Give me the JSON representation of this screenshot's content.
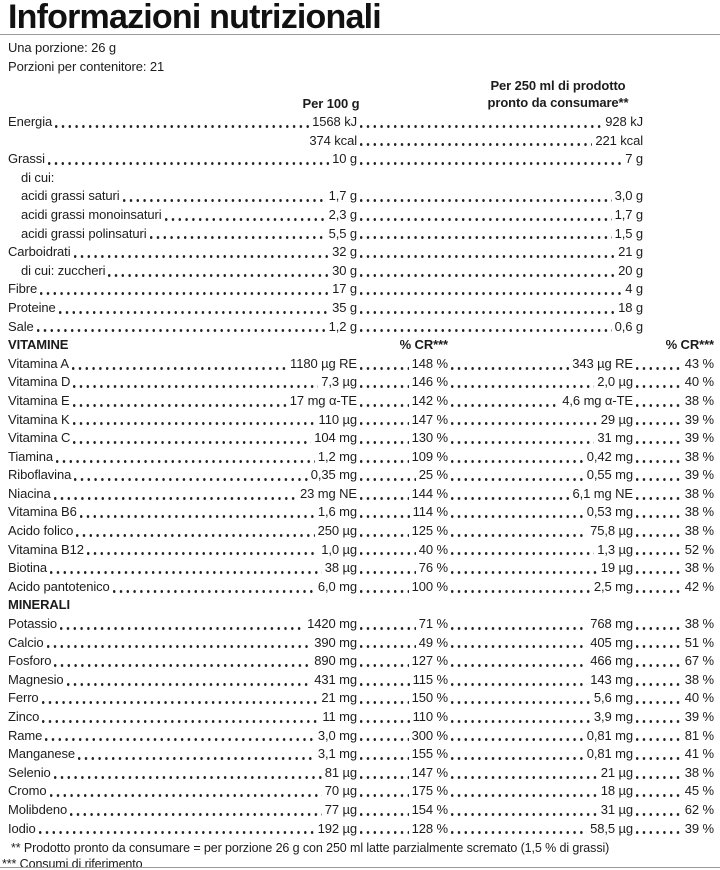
{
  "title": "Informazioni nutrizionali",
  "serving": {
    "per_serving": "Una porzione: 26 g",
    "servings_per_container": "Porzioni per contenitore: 21"
  },
  "column_headers": {
    "per_100g": "Per 100 g",
    "per_250ml_line1": "Per 250 ml di prodotto",
    "per_250ml_line2": "pronto da consumare**",
    "pct_cr": "% CR***"
  },
  "colors": {
    "text": "#1c1c1c",
    "rule": "#9a9a9a",
    "background": "#ffffff"
  },
  "table": {
    "rows": [
      {
        "type": "macro",
        "label": "Energia",
        "a1": "1568 kJ",
        "a2": "928 kJ"
      },
      {
        "type": "macro",
        "label": "",
        "a1": "374 kcal",
        "a2": "221 kcal",
        "leadDots": false
      },
      {
        "type": "macro",
        "label": "Grassi",
        "a1": "10 g",
        "a2": "7 g"
      },
      {
        "type": "label",
        "label": "di cui:",
        "indent": true
      },
      {
        "type": "macro",
        "label": "acidi grassi saturi",
        "a1": "1,7 g",
        "a2": "3,0 g",
        "indent": true
      },
      {
        "type": "macro",
        "label": "acidi grassi monoinsaturi",
        "a1": "2,3 g",
        "a2": "1,7 g",
        "indent": true
      },
      {
        "type": "macro",
        "label": "acidi grassi polinsaturi",
        "a1": "5,5 g",
        "a2": "1,5 g",
        "indent": true
      },
      {
        "type": "macro",
        "label": "Carboidrati",
        "a1": "32 g",
        "a2": "21 g"
      },
      {
        "type": "macro",
        "label": "di cui: zuccheri",
        "a1": "30 g",
        "a2": "20 g",
        "indent": true
      },
      {
        "type": "macro",
        "label": "Fibre",
        "a1": "17 g",
        "a2": "4 g"
      },
      {
        "type": "macro",
        "label": "Proteine",
        "a1": "35 g",
        "a2": "18 g"
      },
      {
        "type": "macro",
        "label": "Sale",
        "a1": "1,2 g",
        "a2": "0,6 g"
      },
      {
        "type": "section",
        "label": "VITAMINE",
        "p1": "% CR***",
        "p2": "% CR***"
      },
      {
        "type": "micro",
        "label": "Vitamina A",
        "a1": "1180 µg RE",
        "p1": "148 %",
        "a2": "343 µg RE",
        "p2": "43 %"
      },
      {
        "type": "micro",
        "label": "Vitamina D",
        "a1": "7,3 µg",
        "p1": "146 %",
        "a2": "2,0 µg",
        "p2": "40 %"
      },
      {
        "type": "micro",
        "label": "Vitamina E",
        "a1": "17 mg α-TE",
        "p1": "142 %",
        "a2": "4,6 mg α-TE",
        "p2": "38 %"
      },
      {
        "type": "micro",
        "label": "Vitamina K",
        "a1": "110 µg",
        "p1": "147 %",
        "a2": "29 µg",
        "p2": "39 %"
      },
      {
        "type": "micro",
        "label": "Vitamina C",
        "a1": "104 mg",
        "p1": "130 %",
        "a2": "31 mg",
        "p2": "39 %"
      },
      {
        "type": "micro",
        "label": "Tiamina",
        "a1": "1,2 mg",
        "p1": "109 %",
        "a2": "0,42 mg",
        "p2": "38 %"
      },
      {
        "type": "micro",
        "label": "Riboflavina",
        "a1": "0,35 mg",
        "p1": "25 %",
        "a2": "0,55 mg",
        "p2": "39 %"
      },
      {
        "type": "micro",
        "label": "Niacina",
        "a1": "23 mg NE",
        "p1": "144 %",
        "a2": "6,1 mg NE",
        "p2": "38 %"
      },
      {
        "type": "micro",
        "label": "Vitamina B6",
        "a1": "1,6 mg",
        "p1": "114 %",
        "a2": "0,53 mg",
        "p2": "38 %"
      },
      {
        "type": "micro",
        "label": "Acido folico",
        "a1": "250 µg",
        "p1": "125 %",
        "a2": "75,8 µg",
        "p2": "38 %"
      },
      {
        "type": "micro",
        "label": "Vitamina B12",
        "a1": "1,0 µg",
        "p1": "40 %",
        "a2": "1,3 µg",
        "p2": "52 %"
      },
      {
        "type": "micro",
        "label": "Biotina",
        "a1": "38 µg",
        "p1": "76 %",
        "a2": "19 µg",
        "p2": "38 %"
      },
      {
        "type": "micro",
        "label": "Acido pantotenico",
        "a1": "6,0 mg",
        "p1": "100 %",
        "a2": "2,5 mg",
        "p2": "42 %"
      },
      {
        "type": "section",
        "label": "MINERALI"
      },
      {
        "type": "micro",
        "label": "Potassio",
        "a1": "1420 mg",
        "p1": "71 %",
        "a2": "768 mg",
        "p2": "38 %"
      },
      {
        "type": "micro",
        "label": "Calcio",
        "a1": "390 mg",
        "p1": "49 %",
        "a2": "405 mg",
        "p2": "51 %"
      },
      {
        "type": "micro",
        "label": "Fosforo",
        "a1": "890 mg",
        "p1": "127 %",
        "a2": "466 mg",
        "p2": "67 %"
      },
      {
        "type": "micro",
        "label": "Magnesio",
        "a1": "431 mg",
        "p1": "115 %",
        "a2": "143 mg",
        "p2": "38 %"
      },
      {
        "type": "micro",
        "label": "Ferro",
        "a1": "21 mg",
        "p1": "150 %",
        "a2": "5,6 mg",
        "p2": "40 %"
      },
      {
        "type": "micro",
        "label": "Zinco",
        "a1": "11 mg",
        "p1": "110 %",
        "a2": "3,9 mg",
        "p2": "39 %"
      },
      {
        "type": "micro",
        "label": "Rame",
        "a1": "3,0 mg",
        "p1": "300 %",
        "a2": "0,81 mg",
        "p2": "81 %"
      },
      {
        "type": "micro",
        "label": "Manganese",
        "a1": "3,1 mg",
        "p1": "155 %",
        "a2": "0,81 mg",
        "p2": "41 %"
      },
      {
        "type": "micro",
        "label": "Selenio",
        "a1": "81 µg",
        "p1": "147 %",
        "a2": "21 µg",
        "p2": "38 %"
      },
      {
        "type": "micro",
        "label": "Cromo",
        "a1": "70 µg",
        "p1": "175 %",
        "a2": "18 µg",
        "p2": "45 %"
      },
      {
        "type": "micro",
        "label": "Molibdeno",
        "a1": "77 µg",
        "p1": "154 %",
        "a2": "31 µg",
        "p2": "62 %"
      },
      {
        "type": "micro",
        "label": "Iodio",
        "a1": "192 µg",
        "p1": "128 %",
        "a2": "58,5 µg",
        "p2": "39 %"
      }
    ]
  },
  "footnotes": {
    "ready_product": "** Prodotto pronto da consumare = per porzione 26 g con 250 ml latte parzialmente scremato (1,5 % di grassi)",
    "reference_intakes": "*** Consumi di riferimento"
  }
}
